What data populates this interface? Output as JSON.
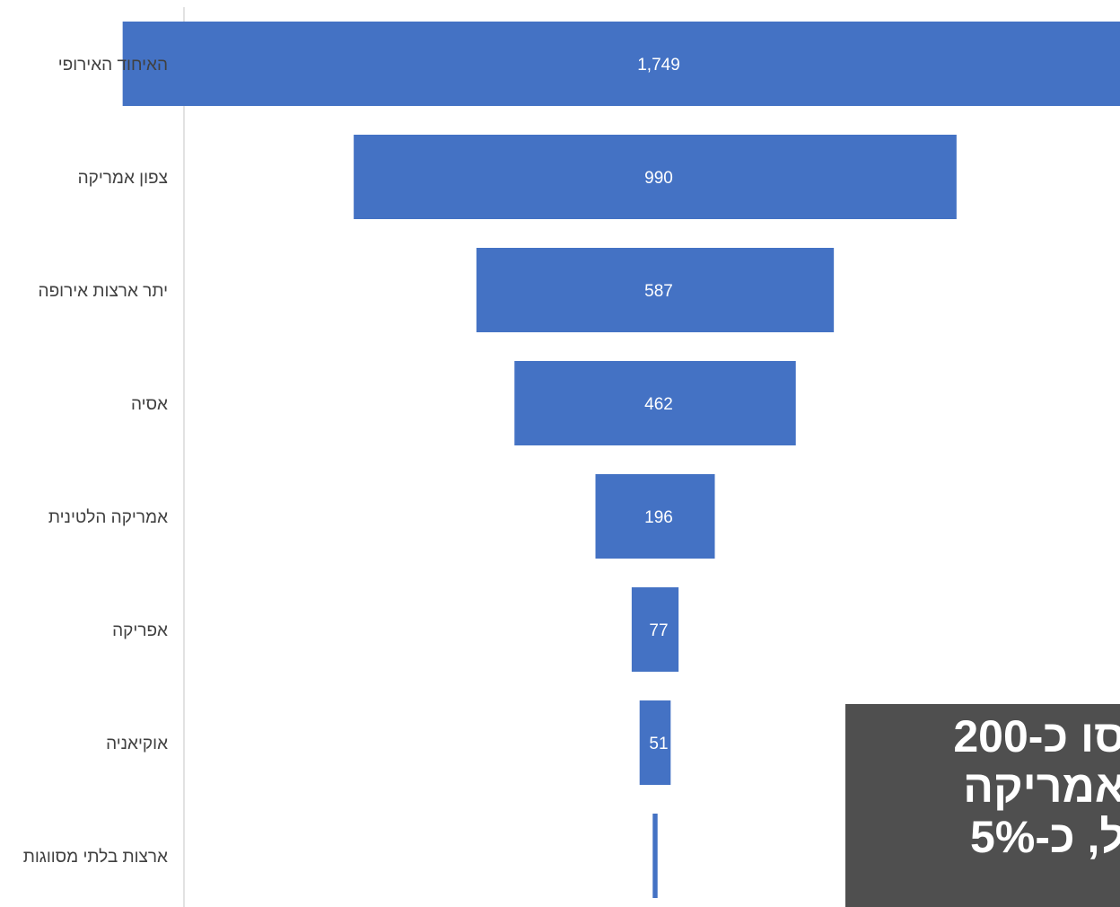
{
  "chart_data": {
    "type": "bar",
    "subtype": "funnel",
    "categories": [
      "האיחוד האירופי",
      "צפון אמריקה",
      "יתר ארצות אירופה",
      "אסיה",
      "אמריקה הלטינית",
      "אפריקה",
      "אוקיאניה",
      "ארצות בלתי מסווגות"
    ],
    "values": [
      1749,
      990,
      587,
      462,
      196,
      77,
      51,
      8
    ],
    "value_labels": [
      "1,749",
      "990",
      "587",
      "462",
      "196",
      "77",
      "51",
      ""
    ],
    "bar_color": "#4472c4",
    "title": "",
    "xlabel": "",
    "ylabel": ""
  },
  "overlay": {
    "background": "#4f4f4f",
    "lines": [
      "סו כ-200",
      "אמריקה",
      "ל, כ-5%"
    ]
  }
}
